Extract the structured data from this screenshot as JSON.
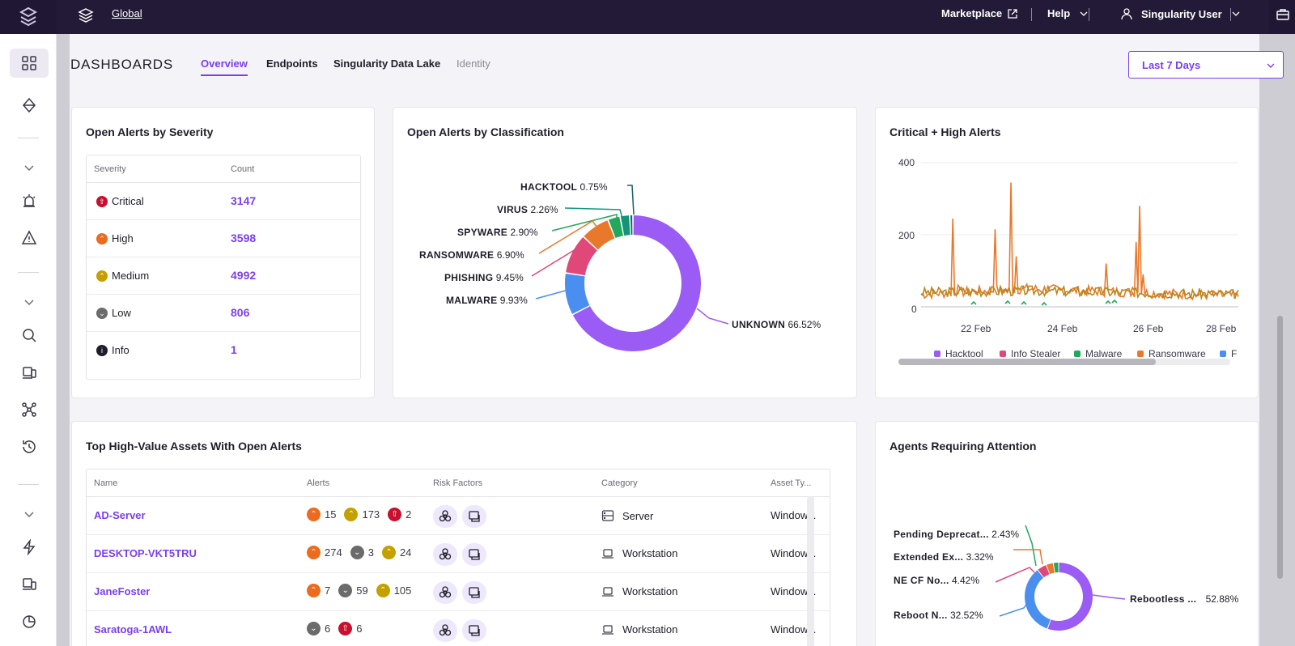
{
  "topbar": {
    "scope": "Global",
    "marketplace": "Marketplace",
    "help": "Help",
    "user": "Singularity User"
  },
  "header": {
    "title": "DASHBOARDS",
    "tabs": [
      {
        "label": "Overview"
      },
      {
        "label": "Endpoints"
      },
      {
        "label": "Singularity Data Lake"
      },
      {
        "label": "Identity"
      }
    ],
    "time_range": "Last 7 Days"
  },
  "severity_card": {
    "title": "Open Alerts by Severity",
    "col_severity": "Severity",
    "col_count": "Count",
    "rows": [
      {
        "label": "Critical",
        "count": "3147",
        "color": "#c8102e"
      },
      {
        "label": "High",
        "count": "3598",
        "color": "#ec6b1f"
      },
      {
        "label": "Medium",
        "count": "4992",
        "color": "#c4a000"
      },
      {
        "label": "Low",
        "count": "806",
        "color": "#6b6b6b"
      },
      {
        "label": "Info",
        "count": "1",
        "color": "#1f1d29"
      }
    ]
  },
  "classification_card": {
    "title": "Open Alerts by Classification",
    "slices": [
      {
        "name": "HACKTOOL",
        "pct": "0.75%",
        "value": 0.75,
        "color": "#1c5e6b"
      },
      {
        "name": "VIRUS",
        "pct": "2.26%",
        "value": 2.26,
        "color": "#129478"
      },
      {
        "name": "SPYWARE",
        "pct": "2.90%",
        "value": 2.9,
        "color": "#22a85e"
      },
      {
        "name": "RANSOMWARE",
        "pct": "6.90%",
        "value": 6.9,
        "color": "#e8782a"
      },
      {
        "name": "PHISHING",
        "pct": "9.45%",
        "value": 9.45,
        "color": "#e0487a"
      },
      {
        "name": "MALWARE",
        "pct": "9.93%",
        "value": 9.93,
        "color": "#4a8ff0"
      },
      {
        "name": "UNKNOWN",
        "pct": "66.52%",
        "value": 66.52,
        "color": "#9a5cf5"
      }
    ]
  },
  "critical_high_card": {
    "title": "Critical + High Alerts",
    "y_ticks": [
      "400",
      "200",
      "0"
    ],
    "x_ticks": [
      "22 Feb",
      "24 Feb",
      "26 Feb",
      "28 Feb"
    ],
    "legend": [
      {
        "name": "Hacktool",
        "color": "#9a5cf5"
      },
      {
        "name": "Info Stealer",
        "color": "#e0487a"
      },
      {
        "name": "Malware",
        "color": "#22a85e"
      },
      {
        "name": "Ransomware",
        "color": "#e8782a"
      },
      {
        "name": "F",
        "color": "#4a8ff0"
      }
    ]
  },
  "chart_data": {
    "type": "line",
    "x": [
      "22 Feb",
      "24 Feb",
      "26 Feb",
      "28 Feb"
    ],
    "ylim": [
      0,
      400
    ],
    "series": [
      {
        "name": "Ransomware",
        "values": [
          35,
          50,
          40,
          30
        ]
      },
      {
        "name": "Hacktool",
        "values": [
          40,
          45,
          40,
          35
        ]
      }
    ]
  },
  "assets_card": {
    "title": "Top High-Value Assets With Open Alerts",
    "columns": [
      "Name",
      "Alerts",
      "Risk Factors",
      "Category",
      "Asset Ty..."
    ],
    "rows": [
      {
        "name": "AD-Server",
        "alerts": [
          {
            "sev": "high",
            "n": "15"
          },
          {
            "sev": "medium",
            "n": "173"
          },
          {
            "sev": "critical",
            "n": "2"
          }
        ],
        "category": "Server",
        "asset_type": "Window..."
      },
      {
        "name": "DESKTOP-VKT5TRU",
        "alerts": [
          {
            "sev": "high",
            "n": "274"
          },
          {
            "sev": "low",
            "n": "3"
          },
          {
            "sev": "medium",
            "n": "24"
          }
        ],
        "category": "Workstation",
        "asset_type": "Window..."
      },
      {
        "name": "JaneFoster",
        "alerts": [
          {
            "sev": "high",
            "n": "7"
          },
          {
            "sev": "low",
            "n": "59"
          },
          {
            "sev": "medium",
            "n": "105"
          }
        ],
        "category": "Workstation",
        "asset_type": "Window..."
      },
      {
        "name": "Saratoga-1AWL",
        "alerts": [
          {
            "sev": "low",
            "n": "6"
          },
          {
            "sev": "critical",
            "n": "6"
          }
        ],
        "category": "Workstation",
        "asset_type": "Window..."
      }
    ]
  },
  "agents_card": {
    "title": "Agents Requiring Attention",
    "slices": [
      {
        "name": "Pending Deprecat...",
        "pct": "2.43%",
        "value": 2.43,
        "color": "#22a85e"
      },
      {
        "name": "Extended Ex...",
        "pct": "3.32%",
        "value": 3.32,
        "color": "#e8782a"
      },
      {
        "name": "NE CF No...",
        "pct": "4.42%",
        "value": 4.42,
        "color": "#e0487a"
      },
      {
        "name": "Reboot N...",
        "pct": "32.52%",
        "value": 32.52,
        "color": "#4a8ff0"
      },
      {
        "name": "Rebootless ...",
        "pct": "52.88%",
        "value": 52.88,
        "color": "#9a5cf5"
      }
    ]
  }
}
